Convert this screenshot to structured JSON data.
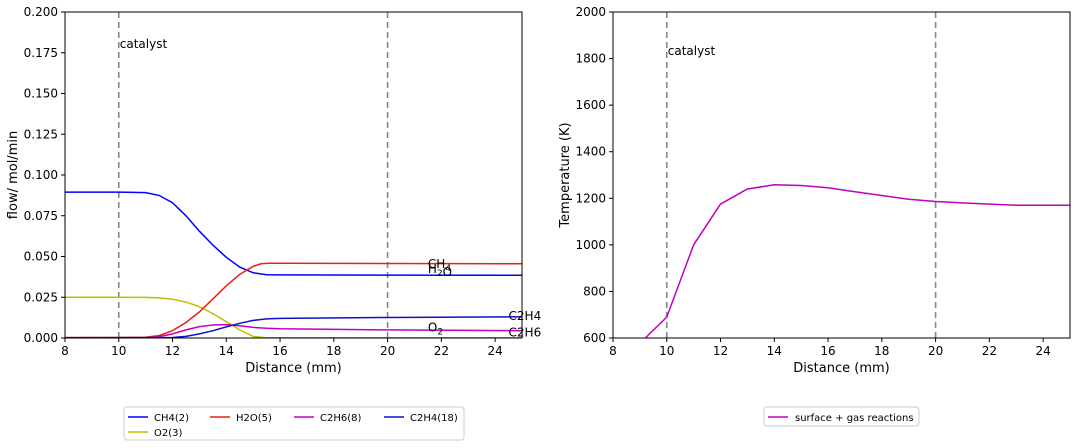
{
  "chart_data": [
    {
      "type": "line",
      "xlabel": "Distance (mm)",
      "ylabel": "flow/ mol/min",
      "xlim": [
        8,
        25
      ],
      "ylim": [
        0,
        0.2
      ],
      "xticks": [
        "8",
        "10",
        "12",
        "14",
        "16",
        "18",
        "20",
        "22",
        "24"
      ],
      "yticks": [
        "0.000",
        "0.025",
        "0.050",
        "0.075",
        "0.100",
        "0.125",
        "0.150",
        "0.175",
        "0.200"
      ],
      "grid": false,
      "legend_placement": "below",
      "annotations": [
        {
          "text": "catalyst",
          "x": 10,
          "y": 0.178
        },
        {
          "text": "CH4",
          "x": 21.5,
          "y": 0.043
        },
        {
          "text": "H2O",
          "x": 21.5,
          "y": 0.04
        },
        {
          "text": "O2",
          "x": 21.5,
          "y": 0.004
        },
        {
          "text": "C2H4",
          "x": 24.5,
          "y": 0.011
        },
        {
          "text": "C2H6",
          "x": 24.5,
          "y": 0.001
        }
      ],
      "vlines": [
        10,
        20
      ],
      "series": [
        {
          "name": "CH4(2)",
          "color": "#0000ff",
          "x": [
            8,
            10,
            11,
            11.5,
            12,
            12.5,
            13,
            13.5,
            14,
            14.5,
            15,
            15.5,
            16,
            20,
            25
          ],
          "y": [
            0.0895,
            0.0895,
            0.0892,
            0.0875,
            0.083,
            0.075,
            0.0655,
            0.057,
            0.0495,
            0.0435,
            0.04,
            0.0388,
            0.0387,
            0.0386,
            0.0385
          ]
        },
        {
          "name": "O2(3)",
          "color": "#bfbf00",
          "x": [
            8,
            10,
            11,
            11.5,
            12,
            12.5,
            13,
            13.5,
            14,
            14.5,
            15,
            15.5,
            16,
            25
          ],
          "y": [
            0.025,
            0.025,
            0.0249,
            0.0246,
            0.0238,
            0.022,
            0.0192,
            0.015,
            0.01,
            0.005,
            0.001,
            0.0002,
            0.0001,
            0.0001
          ]
        },
        {
          "name": "H2O(5)",
          "color": "#e8221b",
          "x": [
            8,
            10,
            11,
            11.5,
            12,
            12.5,
            13,
            13.5,
            14,
            14.5,
            15,
            15.3,
            15.6,
            16,
            20,
            25
          ],
          "y": [
            0.0003,
            0.0003,
            0.0005,
            0.0015,
            0.0045,
            0.0095,
            0.016,
            0.024,
            0.032,
            0.039,
            0.044,
            0.0455,
            0.0458,
            0.0458,
            0.0457,
            0.0455
          ]
        },
        {
          "name": "C2H6(8)",
          "color": "#c000c0",
          "x": [
            8,
            11,
            11.5,
            12,
            12.5,
            13,
            13.5,
            14,
            14.5,
            15,
            15.5,
            16,
            20,
            25
          ],
          "y": [
            0.0001,
            0.0002,
            0.0008,
            0.0025,
            0.005,
            0.007,
            0.008,
            0.0082,
            0.0075,
            0.0065,
            0.006,
            0.0057,
            0.005,
            0.0045
          ]
        },
        {
          "name": "C2H4(18)",
          "color": "#1010cc",
          "x": [
            8,
            12,
            12.5,
            13,
            13.5,
            14,
            14.5,
            15,
            15.5,
            16,
            20,
            25
          ],
          "y": [
            0.0001,
            0.0003,
            0.001,
            0.0025,
            0.0045,
            0.0068,
            0.009,
            0.0108,
            0.0117,
            0.012,
            0.0126,
            0.013
          ]
        }
      ]
    },
    {
      "type": "line",
      "xlabel": "Distance (mm)",
      "ylabel": "Temperature (K)",
      "xlim": [
        8,
        25
      ],
      "ylim": [
        600,
        2000
      ],
      "xticks": [
        "8",
        "10",
        "12",
        "14",
        "16",
        "18",
        "20",
        "22",
        "24"
      ],
      "yticks": [
        "600",
        "800",
        "1000",
        "1200",
        "1400",
        "1600",
        "1800",
        "2000"
      ],
      "grid": false,
      "legend_placement": "below",
      "annotations": [
        {
          "text": "catalyst",
          "x": 10,
          "y": 1815
        }
      ],
      "vlines": [
        10,
        20
      ],
      "series": [
        {
          "name": "surface + gas reactions",
          "color": "#c000c0",
          "x": [
            9.2,
            10,
            11,
            12,
            13,
            14,
            15,
            16,
            17,
            18,
            19,
            20,
            21,
            22,
            23,
            24,
            25
          ],
          "y": [
            600,
            690,
            1000,
            1175,
            1240,
            1258,
            1255,
            1245,
            1228,
            1212,
            1196,
            1186,
            1180,
            1175,
            1170,
            1170,
            1170
          ]
        }
      ]
    }
  ]
}
